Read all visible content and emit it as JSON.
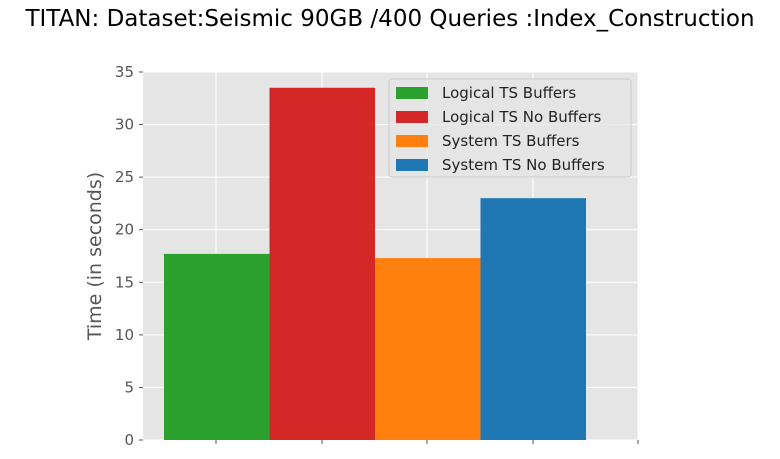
{
  "chart_data": {
    "type": "bar",
    "title": "TITAN: Dataset:Seismic 90GB /400 Queries :Index_Construction",
    "xlabel": "",
    "ylabel": "Time (in seconds)",
    "ylim": [
      0,
      35
    ],
    "yticks": [
      0,
      5,
      10,
      15,
      20,
      25,
      30,
      35
    ],
    "grid": true,
    "legend_position": "top-right",
    "series": [
      {
        "name": "Logical TS Buffers",
        "value": 17.7,
        "color": "#2ca02c"
      },
      {
        "name": "Logical TS No Buffers",
        "value": 33.5,
        "color": "#d62728"
      },
      {
        "name": "System TS Buffers",
        "value": 17.3,
        "color": "#ff7f0e"
      },
      {
        "name": "System TS No Buffers",
        "value": 23.0,
        "color": "#1f77b4"
      }
    ]
  },
  "colors": {
    "plot_background": "#e5e5e5",
    "grid": "#ffffff",
    "tick_label": "#555555",
    "axis_label": "#555555"
  }
}
